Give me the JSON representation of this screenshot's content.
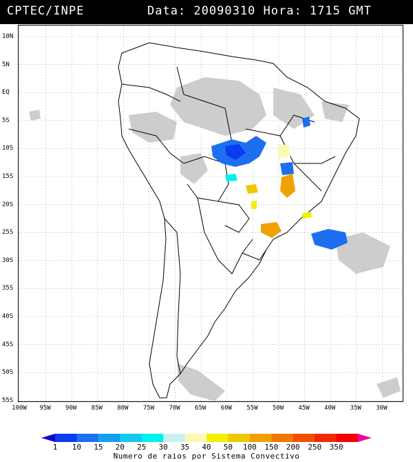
{
  "header": {
    "org": "CPTEC/INPE",
    "datetime": "Data: 20090310 Hora: 1715 GMT"
  },
  "axes": {
    "lat_labels": [
      "10N",
      "5N",
      "EQ",
      "5S",
      "10S",
      "15S",
      "20S",
      "25S",
      "30S",
      "35S",
      "40S",
      "45S",
      "50S",
      "55S"
    ],
    "lon_labels": [
      "100W",
      "95W",
      "90W",
      "85W",
      "80W",
      "75W",
      "70W",
      "65W",
      "60W",
      "55W",
      "50W",
      "45W",
      "40W",
      "35W",
      "30W"
    ]
  },
  "legend": {
    "ticks": [
      "1",
      "10",
      "15",
      "20",
      "25",
      "30",
      "35",
      "40",
      "50",
      "100",
      "150",
      "200",
      "250",
      "350"
    ],
    "caption": "Numero de raios por Sistema Convectivo",
    "colors": [
      "#1400d2",
      "#0a3cf0",
      "#1e6ef0",
      "#14a0f0",
      "#14c8f0",
      "#00f0f0",
      "#c8f0f0",
      "#fafab4",
      "#f0f000",
      "#f0c800",
      "#f0a000",
      "#f07800",
      "#f05000",
      "#f02800",
      "#f00000",
      "#f000a0"
    ]
  },
  "colors": {
    "cloud": "#c8c8c8",
    "graticule": "#888888",
    "coast": "#000000"
  }
}
